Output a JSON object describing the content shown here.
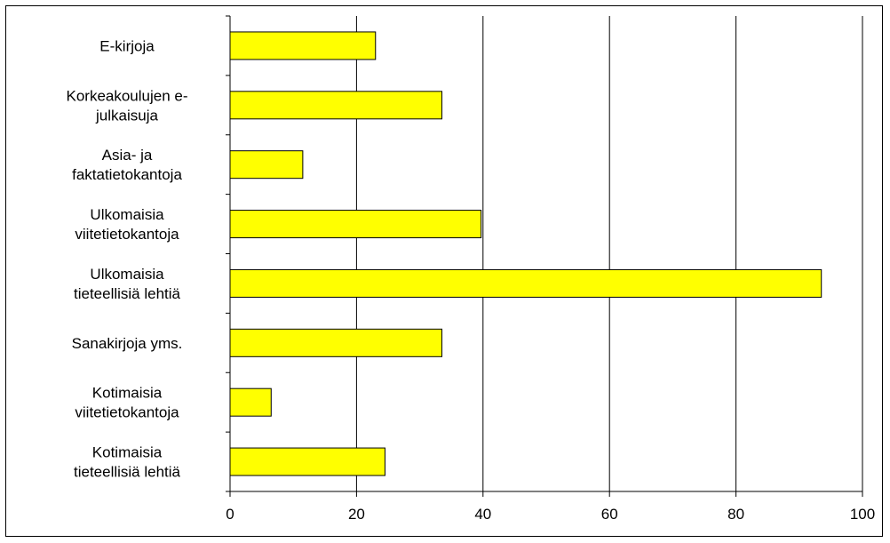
{
  "chart_data": {
    "type": "bar",
    "orientation": "horizontal",
    "categories": [
      [
        "E-kirjoja"
      ],
      [
        "Korkeakoulujen e-",
        "julkaisuja"
      ],
      [
        "Asia- ja",
        "faktatietokantoja"
      ],
      [
        "Ulkomaisia",
        "viitetietokantoja"
      ],
      [
        "Ulkomaisia",
        "tieteellisiä lehtiä"
      ],
      [
        "Sanakirjoja yms."
      ],
      [
        "Kotimaisia",
        "viitetietokantoja"
      ],
      [
        "Kotimaisia",
        "tieteellisiä lehtiä"
      ]
    ],
    "values": [
      23,
      33.5,
      11.5,
      39.7,
      93.5,
      33.5,
      6.5,
      24.5
    ],
    "xlim": [
      0,
      100
    ],
    "xticks": [
      0,
      20,
      40,
      60,
      80,
      100
    ],
    "x_tick_labels": [
      "0",
      "20",
      "40",
      "60",
      "80",
      "100"
    ],
    "title": "",
    "xlabel": "",
    "ylabel": "",
    "grid": "vertical",
    "legend": "none",
    "bar_color": "#ffff00",
    "bar_edge_color": "#000000",
    "grid_color": "#000000"
  }
}
